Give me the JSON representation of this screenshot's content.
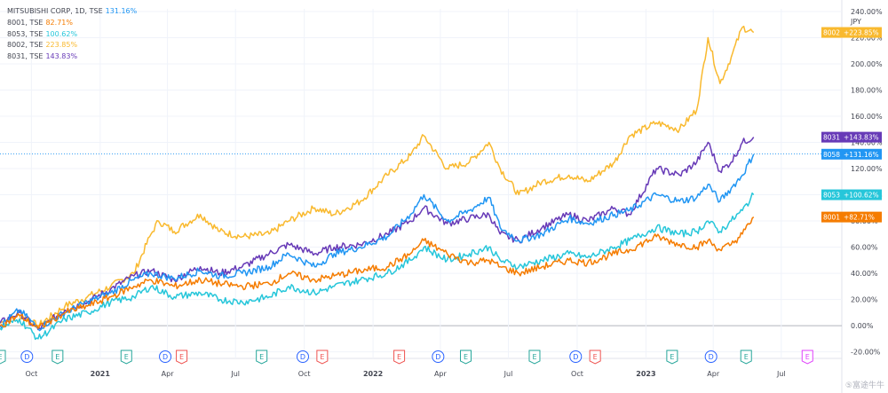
{
  "legend": [
    {
      "name": "MITSUBISHI CORP, 1D, TSE",
      "value": "131.16%",
      "color": "#2196f3"
    },
    {
      "name": "8001, TSE",
      "value": "82.71%",
      "color": "#f57c00"
    },
    {
      "name": "8053, TSE",
      "value": "100.62%",
      "color": "#26c6da"
    },
    {
      "name": "8002, TSE",
      "value": "223.85%",
      "color": "#f9b92e"
    },
    {
      "name": "8031, TSE",
      "value": "143.83%",
      "color": "#673ab7"
    }
  ],
  "axis_unit": "JPY",
  "watermark": "⑤富途牛牛",
  "chart_data": {
    "type": "line",
    "title": "",
    "xlabel": "",
    "ylabel": "",
    "y_unit": "percent change",
    "ylim": [
      -25,
      242
    ],
    "y_ticks": [
      -20,
      0,
      20,
      40,
      60,
      80,
      100,
      120,
      140,
      160,
      180,
      200,
      220,
      240
    ],
    "y_tick_labels": [
      "-20.00%",
      "0.00%",
      "20.00%",
      "40.00%",
      "60.00%",
      "80.00%",
      "100.00%",
      "120.00%",
      "140.00%",
      "160.00%",
      "180.00%",
      "200.00%",
      "220.00%",
      "240.00%"
    ],
    "x_range": [
      "2020-08-20",
      "2023-09-20"
    ],
    "x_ticks": [
      {
        "date": "2020-10-01",
        "label": "Oct",
        "bold": false
      },
      {
        "date": "2021-01-01",
        "label": "2021",
        "bold": true
      },
      {
        "date": "2021-04-01",
        "label": "Apr",
        "bold": false
      },
      {
        "date": "2021-07-01",
        "label": "Jul",
        "bold": false
      },
      {
        "date": "2021-10-01",
        "label": "Oct",
        "bold": false
      },
      {
        "date": "2022-01-01",
        "label": "2022",
        "bold": true
      },
      {
        "date": "2022-04-01",
        "label": "Apr",
        "bold": false
      },
      {
        "date": "2022-07-01",
        "label": "Jul",
        "bold": false
      },
      {
        "date": "2022-10-01",
        "label": "Oct",
        "bold": false
      },
      {
        "date": "2023-01-01",
        "label": "2023",
        "bold": true
      },
      {
        "date": "2023-04-01",
        "label": "Apr",
        "bold": false
      },
      {
        "date": "2023-07-01",
        "label": "Jul",
        "bold": false
      }
    ],
    "reference_line": 131.16,
    "series": [
      {
        "name": "8002",
        "color": "#f9b92e",
        "last_label": "+223.85%",
        "points": [
          [
            "2020-08-20",
            2
          ],
          [
            "2020-09-15",
            8
          ],
          [
            "2020-10-10",
            0
          ],
          [
            "2020-11-15",
            15
          ],
          [
            "2020-12-15",
            22
          ],
          [
            "2021-01-15",
            30
          ],
          [
            "2021-02-15",
            40
          ],
          [
            "2021-03-10",
            70
          ],
          [
            "2021-03-20",
            80
          ],
          [
            "2021-04-10",
            72
          ],
          [
            "2021-05-15",
            85
          ],
          [
            "2021-06-10",
            72
          ],
          [
            "2021-07-10",
            68
          ],
          [
            "2021-08-15",
            70
          ],
          [
            "2021-09-10",
            80
          ],
          [
            "2021-10-15",
            90
          ],
          [
            "2021-11-10",
            85
          ],
          [
            "2021-12-15",
            95
          ],
          [
            "2022-01-20",
            115
          ],
          [
            "2022-02-20",
            130
          ],
          [
            "2022-03-10",
            145
          ],
          [
            "2022-04-10",
            120
          ],
          [
            "2022-05-10",
            125
          ],
          [
            "2022-06-05",
            140
          ],
          [
            "2022-06-20",
            120
          ],
          [
            "2022-07-15",
            100
          ],
          [
            "2022-08-15",
            110
          ],
          [
            "2022-09-20",
            115
          ],
          [
            "2022-10-15",
            110
          ],
          [
            "2022-11-20",
            125
          ],
          [
            "2022-12-10",
            145
          ],
          [
            "2023-01-15",
            155
          ],
          [
            "2023-02-15",
            150
          ],
          [
            "2023-03-10",
            165
          ],
          [
            "2023-03-25",
            220
          ],
          [
            "2023-04-10",
            185
          ],
          [
            "2023-04-25",
            205
          ],
          [
            "2023-05-10",
            228
          ],
          [
            "2023-05-25",
            224
          ]
        ]
      },
      {
        "name": "8031",
        "color": "#673ab7",
        "last_label": "+143.83%",
        "points": [
          [
            "2020-08-20",
            2
          ],
          [
            "2020-09-15",
            10
          ],
          [
            "2020-10-10",
            -3
          ],
          [
            "2020-11-15",
            12
          ],
          [
            "2020-12-15",
            18
          ],
          [
            "2021-01-15",
            28
          ],
          [
            "2021-02-15",
            38
          ],
          [
            "2021-03-10",
            42
          ],
          [
            "2021-04-10",
            35
          ],
          [
            "2021-05-15",
            45
          ],
          [
            "2021-06-10",
            40
          ],
          [
            "2021-07-10",
            45
          ],
          [
            "2021-08-15",
            55
          ],
          [
            "2021-09-10",
            62
          ],
          [
            "2021-10-15",
            55
          ],
          [
            "2021-11-10",
            60
          ],
          [
            "2021-12-15",
            62
          ],
          [
            "2022-01-20",
            70
          ],
          [
            "2022-02-20",
            80
          ],
          [
            "2022-03-10",
            90
          ],
          [
            "2022-04-10",
            78
          ],
          [
            "2022-05-10",
            82
          ],
          [
            "2022-06-05",
            85
          ],
          [
            "2022-06-20",
            70
          ],
          [
            "2022-07-15",
            65
          ],
          [
            "2022-08-15",
            75
          ],
          [
            "2022-09-20",
            85
          ],
          [
            "2022-10-15",
            80
          ],
          [
            "2022-11-20",
            90
          ],
          [
            "2022-12-10",
            85
          ],
          [
            "2023-01-15",
            120
          ],
          [
            "2023-02-15",
            115
          ],
          [
            "2023-03-10",
            125
          ],
          [
            "2023-03-25",
            140
          ],
          [
            "2023-04-10",
            118
          ],
          [
            "2023-04-25",
            125
          ],
          [
            "2023-05-10",
            140
          ],
          [
            "2023-05-25",
            144
          ]
        ]
      },
      {
        "name": "8058",
        "color": "#2196f3",
        "last_label": "+131.16%",
        "points": [
          [
            "2020-08-20",
            0
          ],
          [
            "2020-09-15",
            12
          ],
          [
            "2020-10-10",
            -2
          ],
          [
            "2020-11-15",
            10
          ],
          [
            "2020-12-15",
            18
          ],
          [
            "2021-01-15",
            25
          ],
          [
            "2021-02-15",
            35
          ],
          [
            "2021-03-10",
            40
          ],
          [
            "2021-04-10",
            36
          ],
          [
            "2021-05-15",
            42
          ],
          [
            "2021-06-10",
            38
          ],
          [
            "2021-07-10",
            40
          ],
          [
            "2021-08-15",
            45
          ],
          [
            "2021-09-10",
            55
          ],
          [
            "2021-10-15",
            45
          ],
          [
            "2021-11-10",
            55
          ],
          [
            "2021-12-15",
            60
          ],
          [
            "2022-01-20",
            68
          ],
          [
            "2022-02-20",
            85
          ],
          [
            "2022-03-10",
            100
          ],
          [
            "2022-04-10",
            80
          ],
          [
            "2022-05-10",
            88
          ],
          [
            "2022-06-05",
            98
          ],
          [
            "2022-06-20",
            75
          ],
          [
            "2022-07-15",
            65
          ],
          [
            "2022-08-15",
            70
          ],
          [
            "2022-09-20",
            82
          ],
          [
            "2022-10-15",
            78
          ],
          [
            "2022-11-20",
            85
          ],
          [
            "2022-12-10",
            88
          ],
          [
            "2023-01-15",
            100
          ],
          [
            "2023-02-15",
            95
          ],
          [
            "2023-03-10",
            98
          ],
          [
            "2023-03-25",
            108
          ],
          [
            "2023-04-10",
            95
          ],
          [
            "2023-04-25",
            105
          ],
          [
            "2023-05-10",
            115
          ],
          [
            "2023-05-25",
            131
          ]
        ]
      },
      {
        "name": "8053",
        "color": "#26c6da",
        "last_label": "+100.62%",
        "points": [
          [
            "2020-08-20",
            -2
          ],
          [
            "2020-09-15",
            5
          ],
          [
            "2020-10-10",
            -10
          ],
          [
            "2020-11-15",
            5
          ],
          [
            "2020-12-15",
            10
          ],
          [
            "2021-01-15",
            18
          ],
          [
            "2021-02-15",
            22
          ],
          [
            "2021-03-10",
            30
          ],
          [
            "2021-04-10",
            22
          ],
          [
            "2021-05-15",
            25
          ],
          [
            "2021-06-10",
            20
          ],
          [
            "2021-07-10",
            18
          ],
          [
            "2021-08-15",
            22
          ],
          [
            "2021-09-10",
            30
          ],
          [
            "2021-10-15",
            25
          ],
          [
            "2021-11-10",
            30
          ],
          [
            "2021-12-15",
            35
          ],
          [
            "2022-01-20",
            40
          ],
          [
            "2022-02-20",
            50
          ],
          [
            "2022-03-10",
            60
          ],
          [
            "2022-04-10",
            50
          ],
          [
            "2022-05-10",
            55
          ],
          [
            "2022-06-05",
            60
          ],
          [
            "2022-06-20",
            50
          ],
          [
            "2022-07-15",
            45
          ],
          [
            "2022-08-15",
            50
          ],
          [
            "2022-09-20",
            55
          ],
          [
            "2022-10-15",
            52
          ],
          [
            "2022-11-20",
            60
          ],
          [
            "2022-12-10",
            65
          ],
          [
            "2023-01-15",
            75
          ],
          [
            "2023-02-15",
            70
          ],
          [
            "2023-03-10",
            72
          ],
          [
            "2023-03-25",
            80
          ],
          [
            "2023-04-10",
            72
          ],
          [
            "2023-04-25",
            80
          ],
          [
            "2023-05-10",
            88
          ],
          [
            "2023-05-25",
            100
          ]
        ]
      },
      {
        "name": "8001",
        "color": "#f57c00",
        "last_label": "+82.71%",
        "points": [
          [
            "2020-08-20",
            0
          ],
          [
            "2020-09-15",
            8
          ],
          [
            "2020-10-10",
            -2
          ],
          [
            "2020-11-15",
            10
          ],
          [
            "2020-12-15",
            15
          ],
          [
            "2021-01-15",
            22
          ],
          [
            "2021-02-15",
            30
          ],
          [
            "2021-03-10",
            35
          ],
          [
            "2021-04-10",
            30
          ],
          [
            "2021-05-15",
            35
          ],
          [
            "2021-06-10",
            32
          ],
          [
            "2021-07-10",
            30
          ],
          [
            "2021-08-15",
            32
          ],
          [
            "2021-09-10",
            40
          ],
          [
            "2021-10-15",
            35
          ],
          [
            "2021-11-10",
            38
          ],
          [
            "2021-12-15",
            42
          ],
          [
            "2022-01-20",
            45
          ],
          [
            "2022-02-20",
            55
          ],
          [
            "2022-03-10",
            65
          ],
          [
            "2022-04-10",
            55
          ],
          [
            "2022-05-10",
            48
          ],
          [
            "2022-06-05",
            50
          ],
          [
            "2022-06-20",
            45
          ],
          [
            "2022-07-15",
            40
          ],
          [
            "2022-08-15",
            45
          ],
          [
            "2022-09-20",
            50
          ],
          [
            "2022-10-15",
            48
          ],
          [
            "2022-11-20",
            55
          ],
          [
            "2022-12-10",
            58
          ],
          [
            "2023-01-15",
            68
          ],
          [
            "2023-02-15",
            62
          ],
          [
            "2023-03-10",
            60
          ],
          [
            "2023-03-25",
            65
          ],
          [
            "2023-04-10",
            58
          ],
          [
            "2023-04-25",
            62
          ],
          [
            "2023-05-10",
            70
          ],
          [
            "2023-05-25",
            83
          ]
        ]
      }
    ],
    "event_markers": [
      {
        "date": "2020-08-20",
        "type": "E",
        "color": "#26a69a"
      },
      {
        "date": "2020-09-25",
        "type": "D",
        "color": "#2962ff"
      },
      {
        "date": "2020-11-05",
        "type": "E",
        "color": "#26a69a"
      },
      {
        "date": "2021-02-05",
        "type": "E",
        "color": "#26a69a"
      },
      {
        "date": "2021-03-29",
        "type": "D",
        "color": "#2962ff"
      },
      {
        "date": "2021-04-20",
        "type": "E",
        "color": "#ef5350"
      },
      {
        "date": "2021-08-05",
        "type": "E",
        "color": "#26a69a"
      },
      {
        "date": "2021-09-29",
        "type": "D",
        "color": "#2962ff"
      },
      {
        "date": "2021-10-25",
        "type": "E",
        "color": "#ef5350"
      },
      {
        "date": "2022-02-05",
        "type": "E",
        "color": "#ef5350"
      },
      {
        "date": "2022-03-29",
        "type": "D",
        "color": "#2962ff"
      },
      {
        "date": "2022-05-05",
        "type": "E",
        "color": "#26a69a"
      },
      {
        "date": "2022-08-05",
        "type": "E",
        "color": "#26a69a"
      },
      {
        "date": "2022-09-29",
        "type": "D",
        "color": "#2962ff"
      },
      {
        "date": "2022-10-25",
        "type": "E",
        "color": "#ef5350"
      },
      {
        "date": "2023-02-05",
        "type": "E",
        "color": "#26a69a"
      },
      {
        "date": "2023-03-29",
        "type": "D",
        "color": "#2962ff"
      },
      {
        "date": "2023-05-15",
        "type": "E",
        "color": "#26a69a"
      },
      {
        "date": "2023-08-05",
        "type": "E",
        "color": "#e040fb"
      }
    ]
  }
}
